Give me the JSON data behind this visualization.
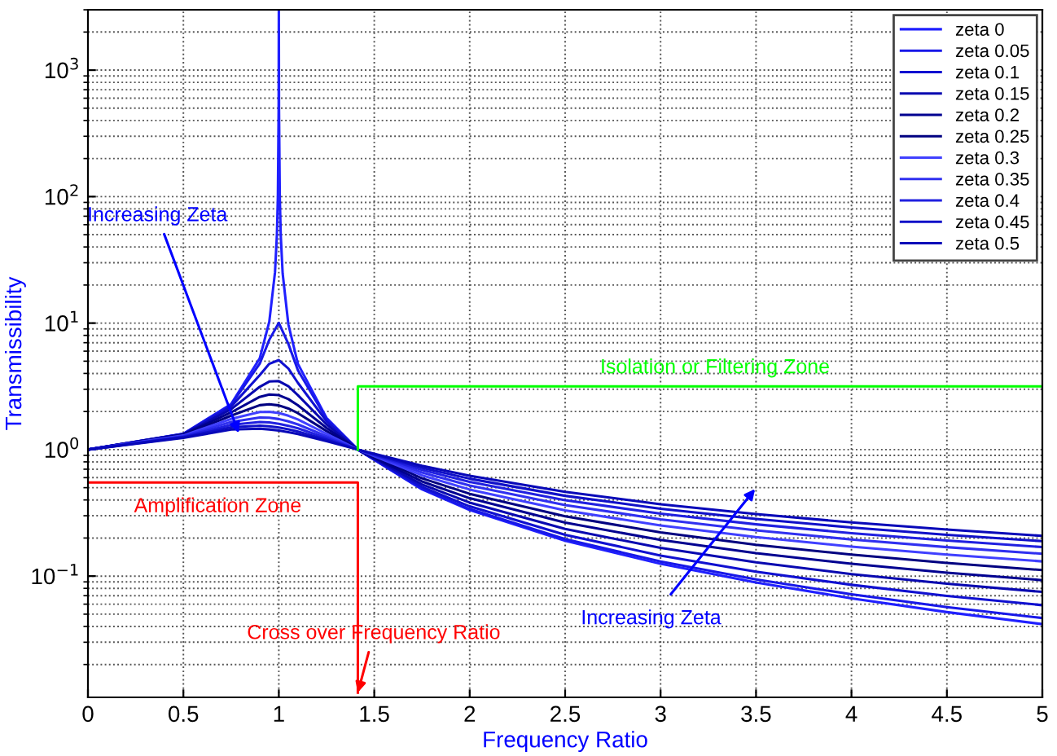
{
  "chart_data": {
    "type": "line",
    "xlabel": "Frequency Ratio",
    "ylabel": "Transmissibility",
    "log": "y",
    "grid": true,
    "legend": "top right",
    "marker": "none",
    "line_style": "solid",
    "xlim": [
      0,
      5
    ],
    "xticks": [
      0,
      0.5,
      1,
      1.5,
      2,
      2.5,
      3,
      3.5,
      4,
      4.5,
      5
    ],
    "ylim": [
      0.011,
      3000
    ],
    "yticks": [
      {
        "value": 0.1,
        "label": "10$^{−1}$"
      },
      {
        "value": 1,
        "label": "10$^{0}$"
      },
      {
        "value": 10,
        "label": "10$^{1}$"
      },
      {
        "value": 100,
        "label": "10$^{2}$"
      },
      {
        "value": 1000,
        "label": "10$^{3}$"
      }
    ],
    "x": [
      0,
      0.5,
      0.75,
      0.9,
      0.95,
      1,
      1.05,
      1.1,
      1.25,
      1.414,
      1.75,
      2,
      2.5,
      3,
      3.5,
      4,
      4.5,
      5
    ],
    "series": [
      {
        "name": "zeta 0",
        "color": "#2020ff",
        "x": [
          0,
          0.5,
          0.75,
          0.9,
          0.95,
          0.98,
          0.99,
          0.995,
          0.999,
          1,
          1.001,
          1.005,
          1.01,
          1.02,
          1.05,
          1.1,
          1.25,
          1.414,
          1.75,
          2,
          2.5,
          3,
          3.5,
          4,
          4.5,
          5
        ],
        "values": [
          1,
          1.333,
          2.286,
          5.263,
          10.26,
          25.25,
          50.25,
          100.3,
          500.3,
          3000,
          499.8,
          99.75,
          49.75,
          24.75,
          9.76,
          4.762,
          1.778,
          1.0,
          0.485,
          0.333,
          0.19,
          0.125,
          0.0889,
          0.0667,
          0.0519,
          0.0417
        ]
      },
      {
        "name": "zeta 0.05",
        "color": "#1818e8",
        "values": [
          1,
          1.332,
          2.259,
          4.776,
          7.378,
          10.05,
          6.851,
          4.244,
          1.749,
          1,
          0.4905,
          0.3392,
          0.1961,
          0.1304,
          0.0941,
          0.0718,
          0.0569,
          0.0466
        ]
      },
      {
        "name": "zeta 0.1",
        "color": "#1010d0",
        "values": [
          1,
          1.328,
          2.186,
          3.882,
          4.766,
          5.099,
          4.373,
          3.367,
          1.675,
          1,
          0.5064,
          0.3559,
          0.212,
          0.1454,
          0.1083,
          0.0853,
          0.0698,
          0.0589
        ]
      },
      {
        "name": "zeta 0.15",
        "color": "#0808b0",
        "values": [
          1,
          1.322,
          2.084,
          3.137,
          3.452,
          3.48,
          3.166,
          2.692,
          1.58,
          1,
          0.5307,
          0.3812,
          0.2357,
          0.1671,
          0.1283,
          0.1038,
          0.0871,
          0.075
        ]
      },
      {
        "name": "zeta 0.2",
        "color": "#000090",
        "values": [
          1,
          1.314,
          1.968,
          2.611,
          2.727,
          2.693,
          2.509,
          2.241,
          1.486,
          1,
          0.5604,
          0.4125,
          0.2646,
          0.1931,
          0.1517,
          0.1251,
          0.1065,
          0.0928
        ]
      },
      {
        "name": "zeta 0.25",
        "color": "#000080",
        "values": [
          1,
          1.304,
          1.854,
          2.245,
          2.283,
          2.236,
          2.112,
          1.939,
          1.402,
          1,
          0.5931,
          0.4472,
          0.2966,
          0.2215,
          0.177,
          0.1478,
          0.127,
          0.1116
        ]
      },
      {
        "name": "zeta 0.3",
        "color": "#4040ff",
        "values": [
          1,
          1.292,
          1.747,
          1.985,
          1.99,
          1.944,
          1.852,
          1.73,
          1.333,
          1,
          0.6265,
          0.4834,
          0.3302,
          0.2511,
          0.2032,
          0.1711,
          0.1481,
          0.1307
        ]
      },
      {
        "name": "zeta 0.35",
        "color": "#3030f0",
        "values": [
          1,
          1.28,
          1.653,
          1.796,
          1.787,
          1.744,
          1.672,
          1.581,
          1.277,
          1,
          0.6592,
          0.5197,
          0.3642,
          0.2812,
          0.2298,
          0.1949,
          0.1694,
          0.1501
        ]
      },
      {
        "name": "zeta 0.4",
        "color": "#2020e0",
        "values": [
          1,
          1.267,
          1.571,
          1.655,
          1.639,
          1.601,
          1.543,
          1.472,
          1.233,
          1,
          0.6902,
          0.5549,
          0.398,
          0.3113,
          0.2565,
          0.2186,
          0.1908,
          0.1695
        ]
      },
      {
        "name": "zeta 0.45",
        "color": "#1010c8",
        "values": [
          1,
          1.254,
          1.5,
          1.547,
          1.529,
          1.495,
          1.447,
          1.39,
          1.197,
          1,
          0.7189,
          0.5886,
          0.4311,
          0.341,
          0.2828,
          0.2422,
          0.212,
          0.1888
        ]
      },
      {
        "name": "zeta 0.5",
        "color": "#0808b8",
        "values": [
          1,
          1.24,
          1.44,
          1.463,
          1.444,
          1.414,
          1.374,
          1.328,
          1.168,
          1,
          0.7452,
          0.6202,
          0.4631,
          0.3701,
          0.3089,
          0.2656,
          0.2332,
          0.208
        ]
      },
      {
        "color": "#00ff00",
        "x": [
          1.414,
          1.414,
          5
        ],
        "values": [
          1,
          3.16,
          3.16
        ]
      },
      {
        "color": "#ff0000",
        "x": [
          0,
          1.414,
          1.414
        ],
        "values": [
          0.55,
          0.55,
          0.012
        ]
      }
    ],
    "annotations": [
      {
        "text": "Increasing Zeta",
        "x": 0.79,
        "y": 1.35
      },
      "Isolation or Filtering Zone",
      "Amplification Zone",
      {
        "text": "Cross over Frequency Ratio",
        "x": 1.414,
        "y": 0.012
      },
      "Increasing Zeta"
    ]
  }
}
